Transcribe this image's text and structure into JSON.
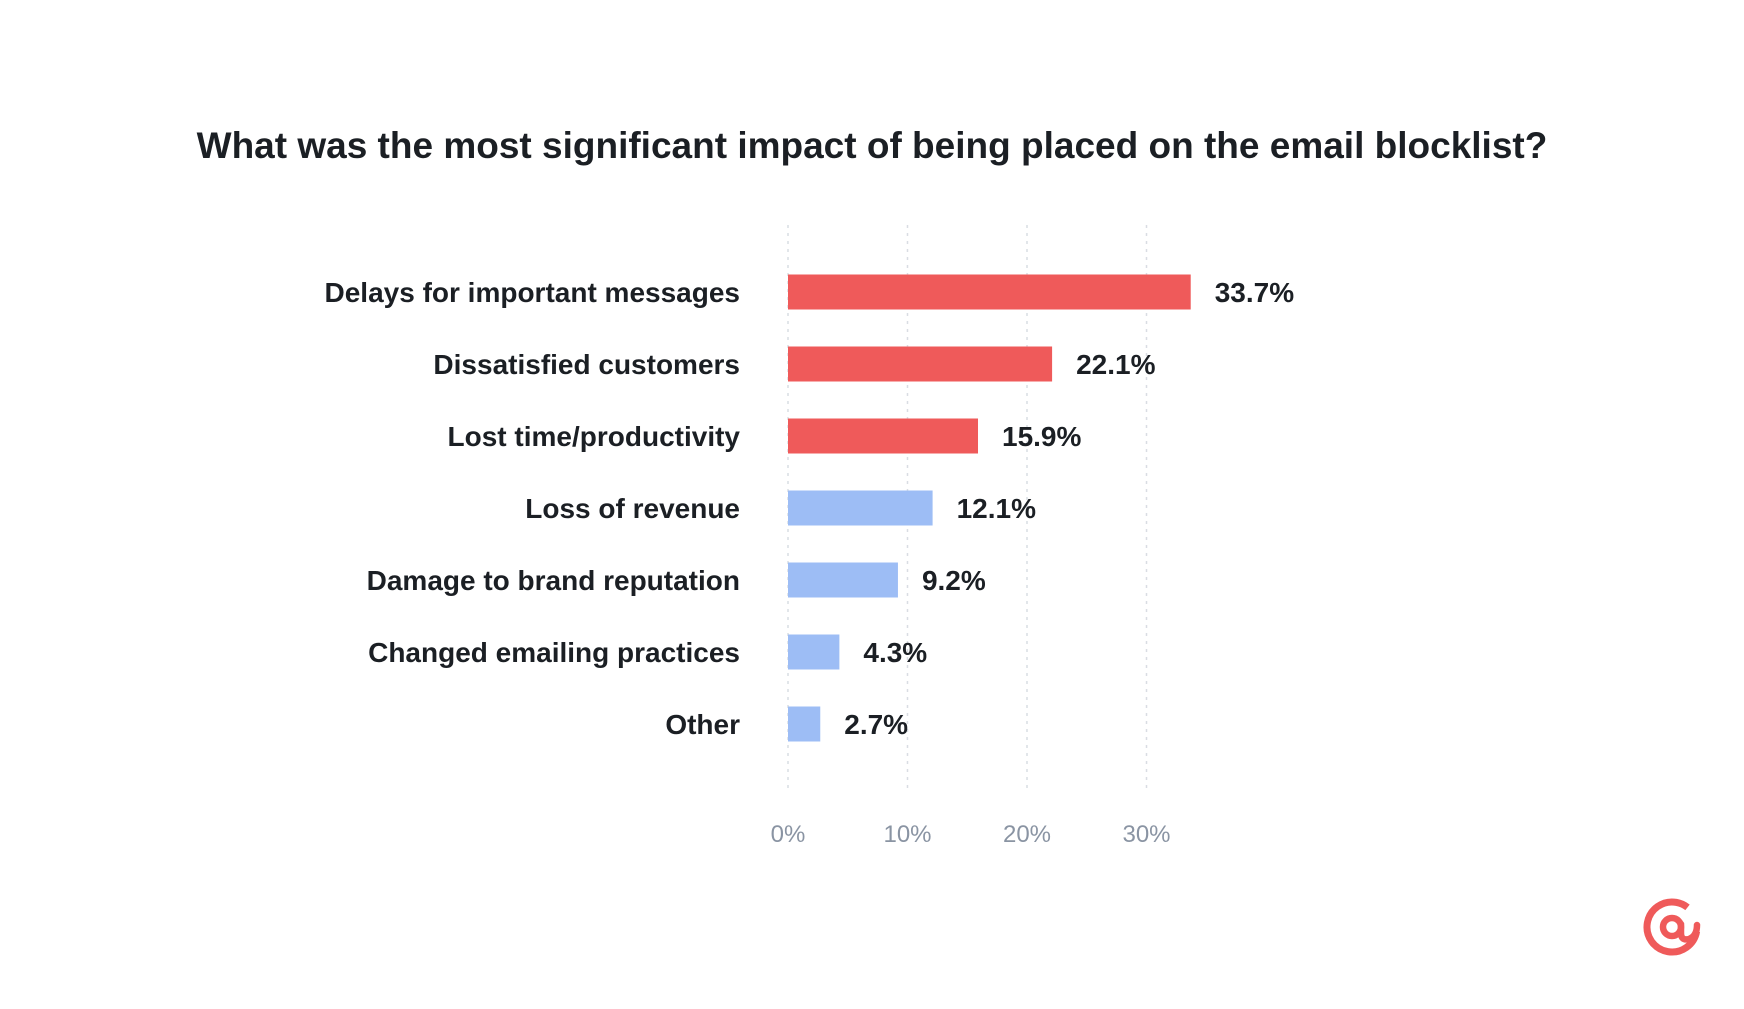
{
  "chart_data": {
    "type": "bar",
    "orientation": "horizontal",
    "title": "What was the most significant impact of being placed on the email blocklist?",
    "categories": [
      "Delays for important messages",
      "Dissatisfied customers",
      "Lost time/productivity",
      "Loss of revenue",
      "Damage to brand reputation",
      "Changed emailing practices",
      "Other"
    ],
    "values": [
      33.7,
      22.1,
      15.9,
      12.1,
      9.2,
      4.3,
      2.7
    ],
    "value_labels": [
      "33.7%",
      "22.1%",
      "15.9%",
      "12.1%",
      "9.2%",
      "4.3%",
      "2.7%"
    ],
    "highlight": [
      true,
      true,
      true,
      false,
      false,
      false,
      false
    ],
    "x_ticks": [
      0,
      10,
      20,
      30
    ],
    "x_tick_labels": [
      "0%",
      "10%",
      "20%",
      "30%"
    ],
    "xlim": [
      0,
      30
    ],
    "xlabel": "",
    "ylabel": "",
    "grid": true,
    "colors": {
      "highlight": "#ef5a5a",
      "default": "#9dbdf5"
    }
  },
  "logo": {
    "name": "at-sign-logo",
    "color": "#ef5a5a"
  }
}
